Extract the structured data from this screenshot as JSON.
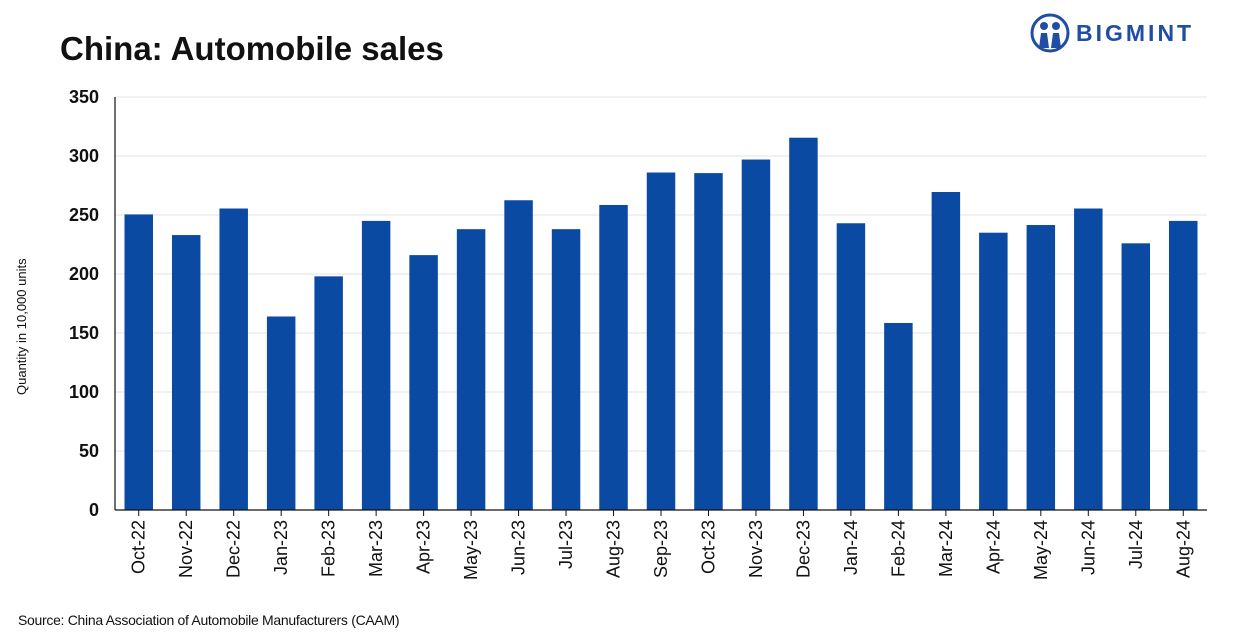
{
  "chart_data": {
    "type": "bar",
    "title": "China: Automobile sales",
    "ylabel": "Quantity in 10,000 units",
    "xlabel": "",
    "ylim": [
      0,
      350
    ],
    "yticks": [
      0,
      50,
      100,
      150,
      200,
      250,
      300,
      350
    ],
    "grid": true,
    "legend": "none",
    "bar_color": "#0a4aa3",
    "categories": [
      "Oct-22",
      "Nov-22",
      "Dec-22",
      "Jan-23",
      "Feb-23",
      "Mar-23",
      "Apr-23",
      "May-23",
      "Jun-23",
      "Jul-23",
      "Aug-23",
      "Sep-23",
      "Oct-23",
      "Nov-23",
      "Dec-23",
      "Jan-24",
      "Feb-24",
      "Mar-24",
      "Apr-24",
      "May-24",
      "Jun-24",
      "Jul-24",
      "Aug-24"
    ],
    "values": [
      250.5,
      233,
      255.5,
      164,
      198,
      245,
      216,
      238,
      262.5,
      238,
      258.5,
      286,
      285.5,
      297,
      315.5,
      243,
      158.5,
      269.5,
      235,
      241.5,
      255.5,
      226,
      245
    ]
  },
  "source": "Source: China Association of Automobile Manufacturers (CAAM)",
  "logo": {
    "text": "BIGMINT",
    "icon": "bigmint-people-icon",
    "color": "#1f4ea3"
  }
}
